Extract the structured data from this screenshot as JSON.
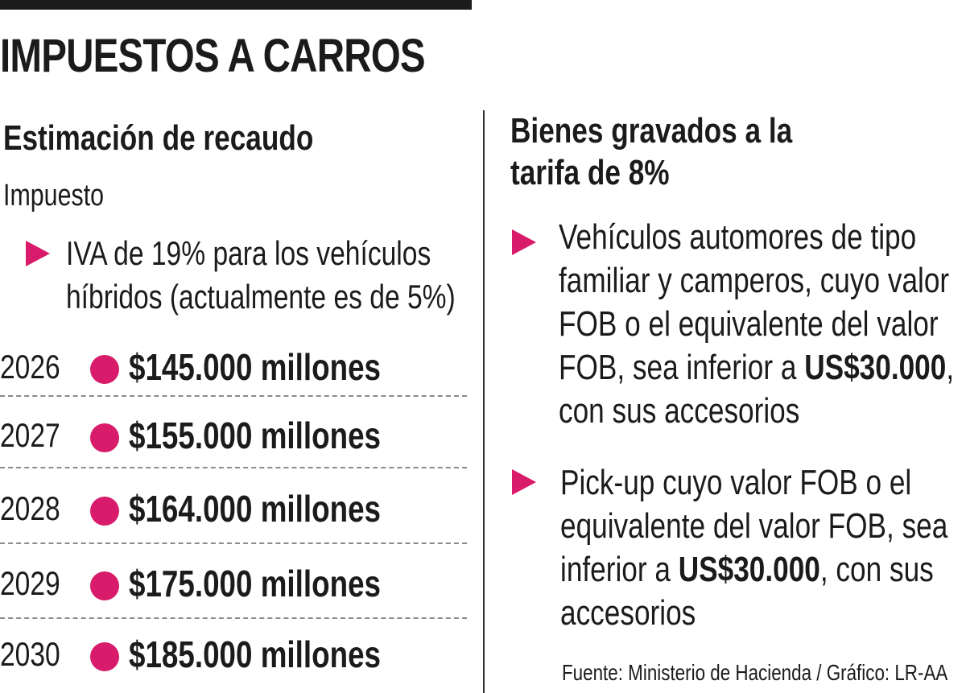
{
  "title": "IMPUESTOS A CARROS",
  "left": {
    "heading": "Estimación de recaudo",
    "subheading": "Impuesto",
    "bullet_lines": [
      "IVA de 19% para los vehículos",
      "híbridos (actualmente es de 5%)"
    ],
    "rows": [
      {
        "year": "2026",
        "amount": "$145.000 millones"
      },
      {
        "year": "2027",
        "amount": "$155.000 millones"
      },
      {
        "year": "2028",
        "amount": "$164.000 millones"
      },
      {
        "year": "2029",
        "amount": "$175.000 millones"
      },
      {
        "year": "2030",
        "amount": "$185.000 millones"
      }
    ]
  },
  "right": {
    "heading_line1": "Bienes gravados a la",
    "heading_line2": "tarifa de 8%",
    "item1": {
      "line1": "Vehículos automores de tipo",
      "line2": "familiar y camperos, cuyo valor",
      "line3": "FOB o el equivalente del valor",
      "line4_pre": "FOB, sea inferior a ",
      "line4_bold": "US$30.000",
      "line4_post": ",",
      "line5": "con sus accesorios"
    },
    "item2": {
      "line1": "Pick-up cuyo valor FOB o el",
      "line2": "equivalente del valor FOB, sea",
      "line3_pre": "inferior a ",
      "line3_bold": "US$30.000",
      "line3_post": ", con sus",
      "line4": "accesorios"
    }
  },
  "source": "Fuente: Ministerio de Hacienda / Gráfico: LR-AA",
  "colors": {
    "accent": "#d81b6a",
    "text": "#1b1b1b"
  }
}
